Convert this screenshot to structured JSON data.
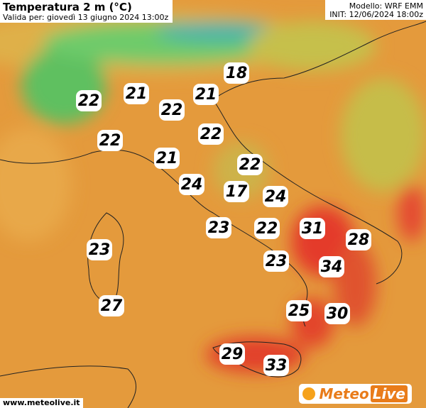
{
  "header": {
    "title": "Temperatura 2 m (°C)",
    "subtitle": "Valida per: giovedì 13 giugno 2024 13:00z",
    "model": "Modello: WRF EMM",
    "init": "INIT: 12/06/2024 18:00z"
  },
  "labels": [
    18,
    22,
    21,
    21,
    22,
    22,
    22,
    21,
    22,
    24,
    17,
    24,
    23,
    22,
    31,
    28,
    23,
    23,
    34,
    27,
    25,
    30,
    29,
    33
  ],
  "footer": {
    "url": "www.meteolive.it",
    "logo_left": "Meteo",
    "logo_right": "Live"
  }
}
